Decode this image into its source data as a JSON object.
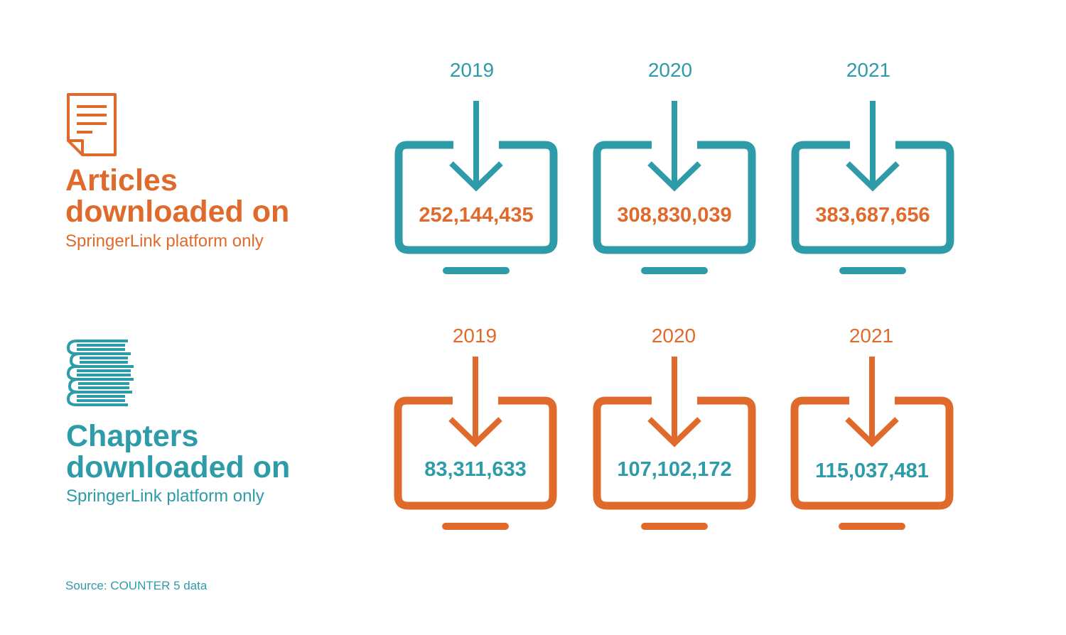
{
  "articles": {
    "heading_line1": "Articles",
    "heading_line2": "downloaded on",
    "subheading": "SpringerLink platform only",
    "items": [
      {
        "year": "2019",
        "value": "252,144,435"
      },
      {
        "year": "2020",
        "value": "308,830,039"
      },
      {
        "year": "2021",
        "value": "383,687,656"
      }
    ]
  },
  "chapters": {
    "heading_line1": "Chapters",
    "heading_line2": "downloaded on",
    "subheading": "SpringerLink platform only",
    "items": [
      {
        "year": "2019",
        "value": "83,311,633"
      },
      {
        "year": "2020",
        "value": "107,102,172"
      },
      {
        "year": "2021",
        "value": "115,037,481"
      }
    ]
  },
  "source": "Source: COUNTER 5 data",
  "colors": {
    "orange": "#e06a2c",
    "teal": "#2e9ba9"
  },
  "icons": {
    "articles": "document-icon",
    "chapters": "book-stack-icon",
    "download": "monitor-download-icon"
  }
}
